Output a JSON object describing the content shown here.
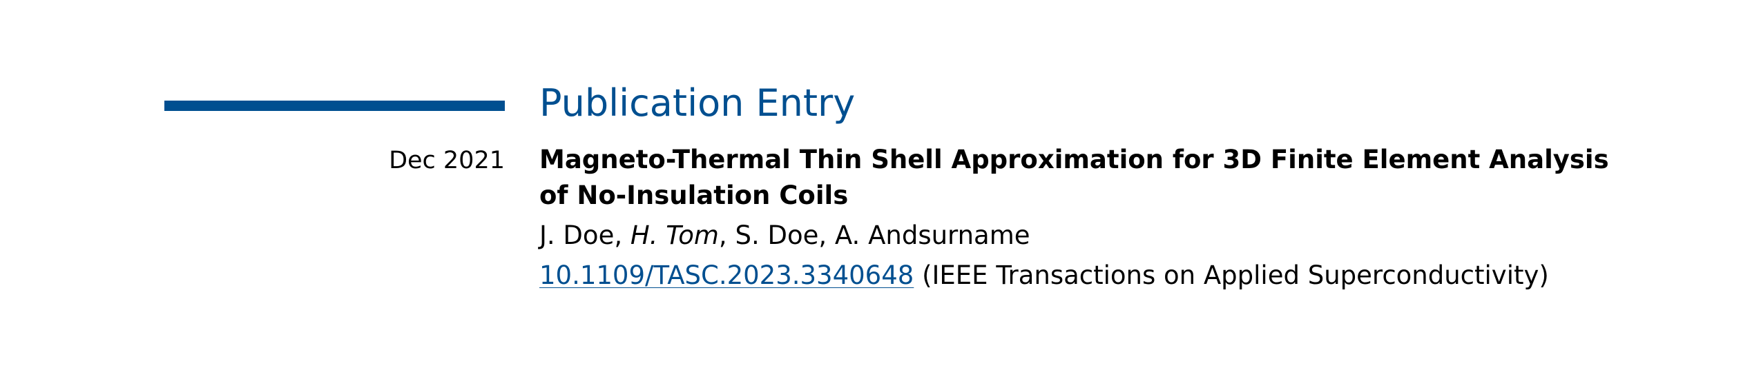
{
  "section": {
    "title": "Publication Entry",
    "accent_color": "#004F90"
  },
  "entry": {
    "date": "Dec 2021",
    "title": "Magneto-Thermal Thin Shell Approximation for 3D Finite Element Analysis of No-Insulation Coils",
    "authors": [
      {
        "name": "J. Doe",
        "highlight": false
      },
      {
        "name": "H. Tom",
        "highlight": true
      },
      {
        "name": "S. Doe",
        "highlight": false
      },
      {
        "name": "A. Andsurname",
        "highlight": false
      }
    ],
    "doi": "10.1109/TASC.2023.3340648",
    "venue": "(IEEE Transactions on Applied Superconductivity)"
  }
}
